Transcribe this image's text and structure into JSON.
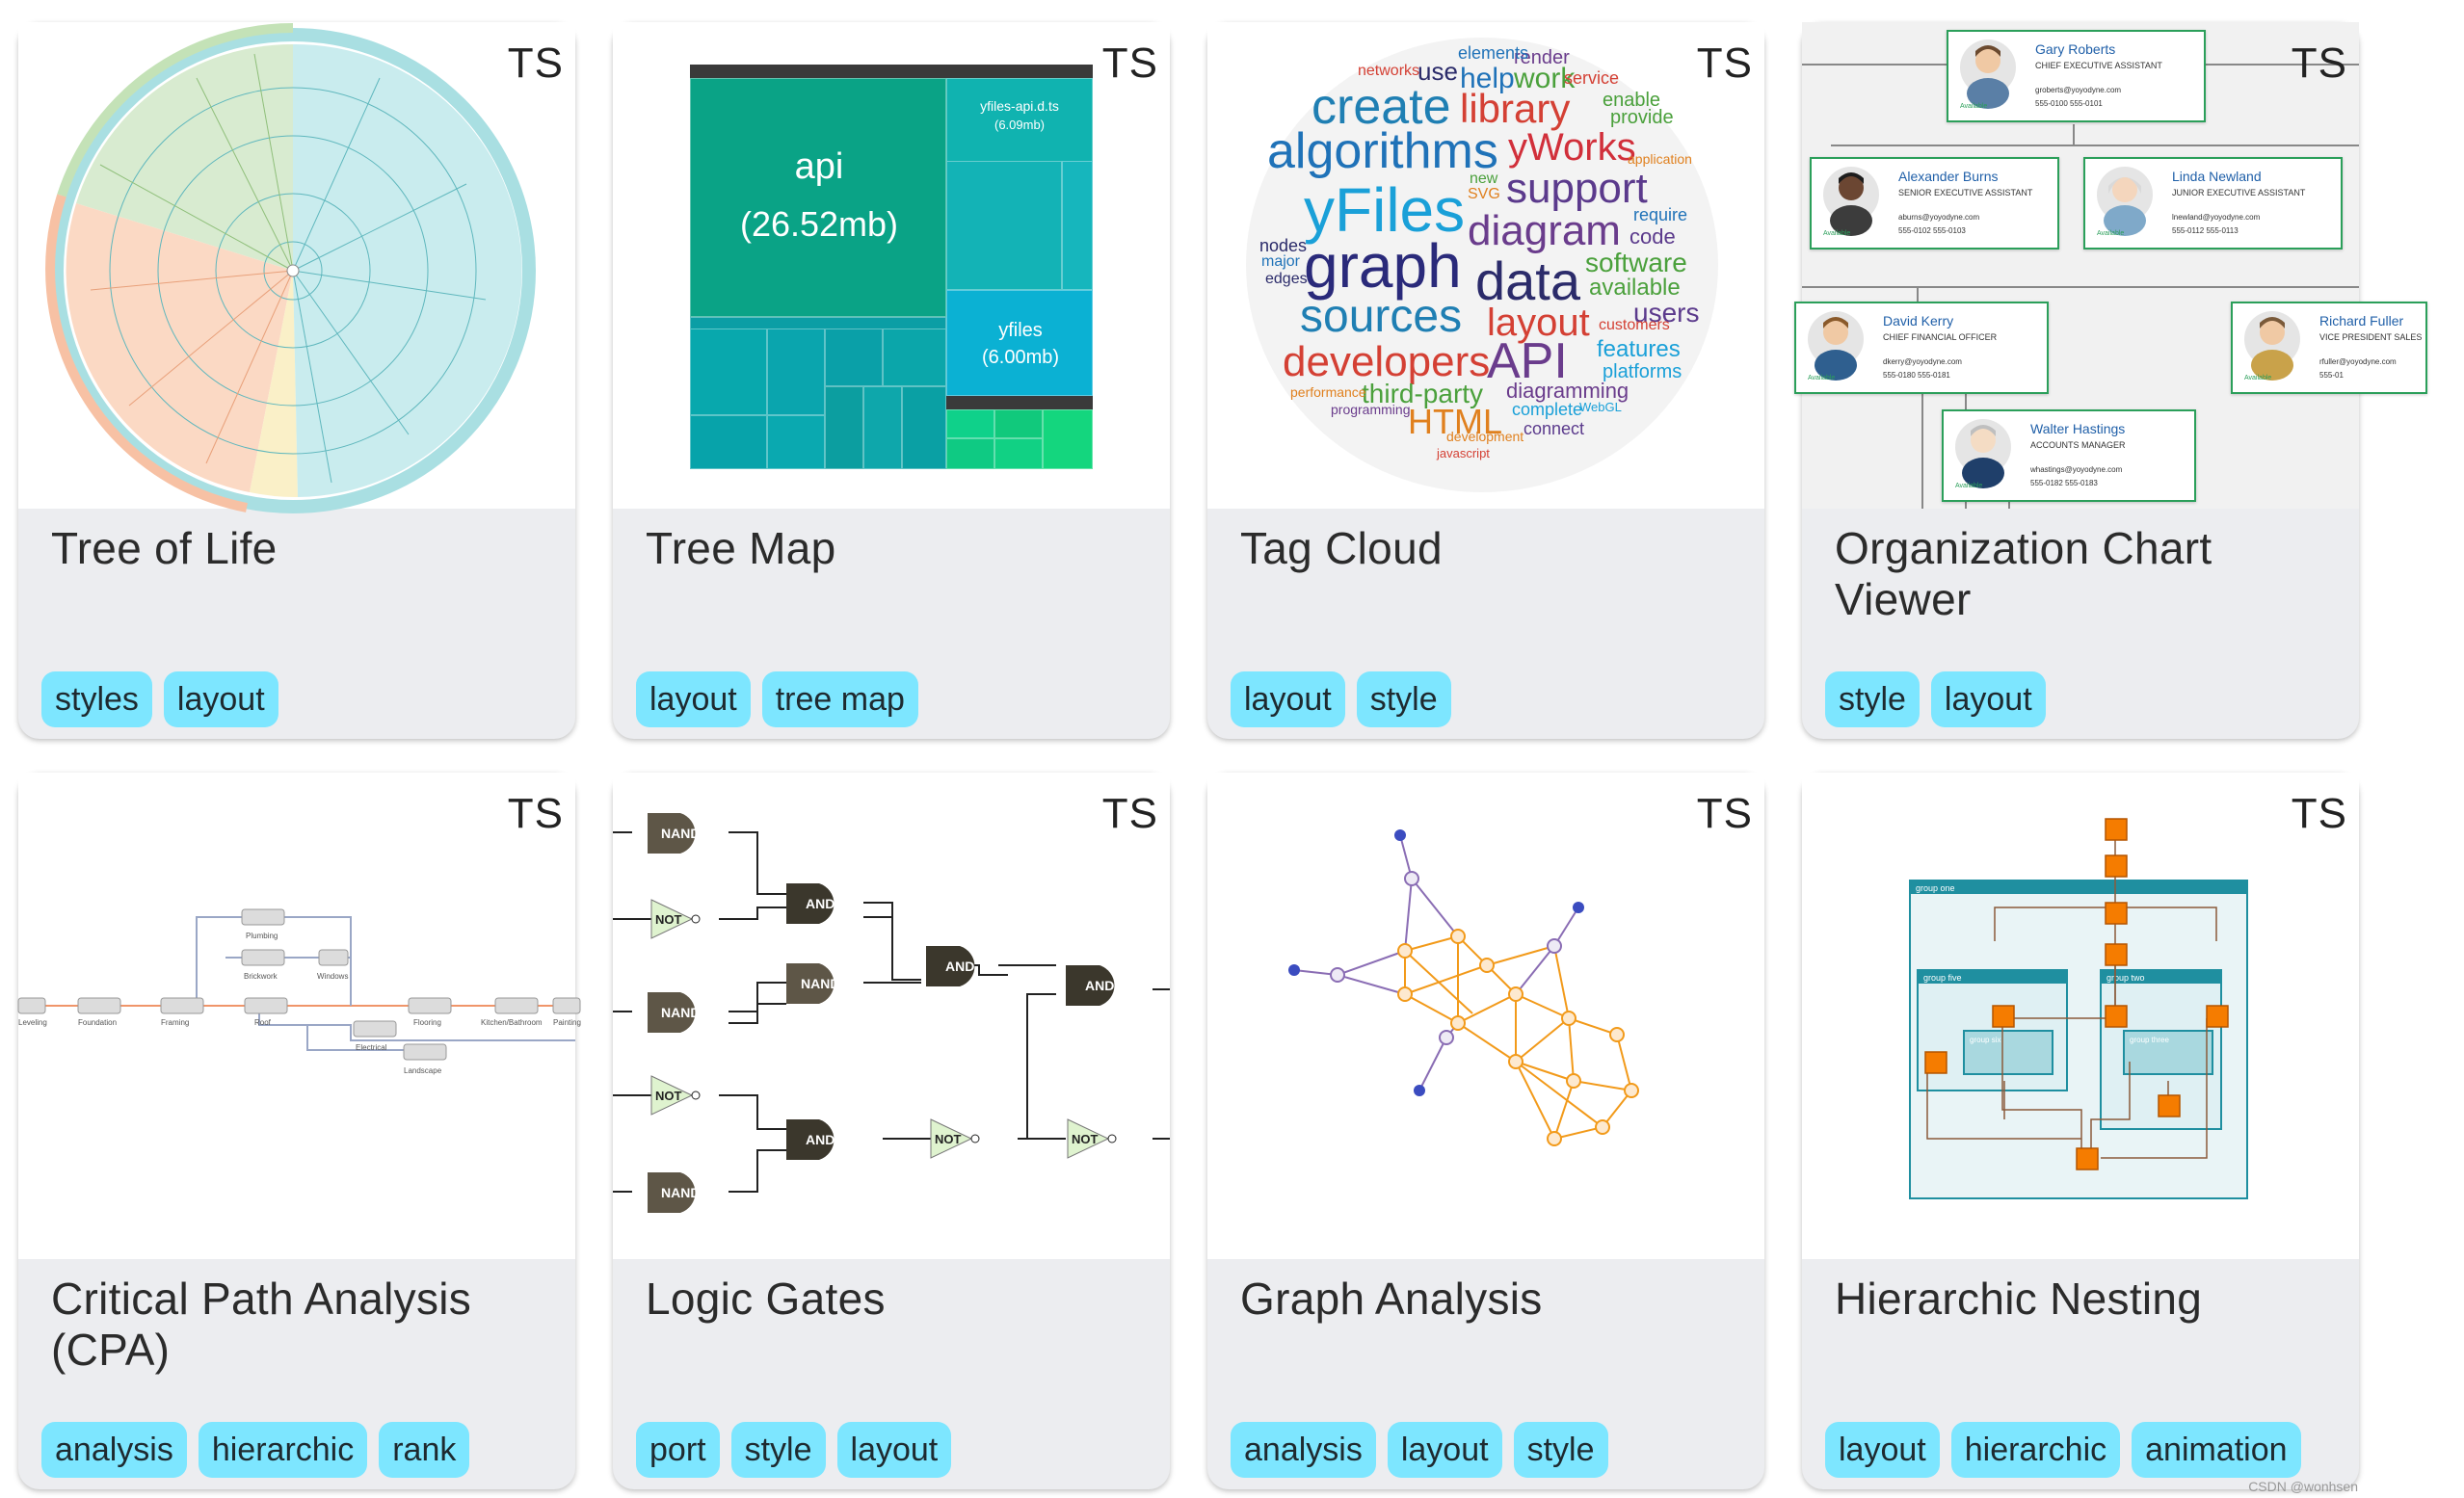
{
  "cards": [
    {
      "title": "Tree of Life",
      "badge": "TS",
      "tags": [
        "styles",
        "layout"
      ]
    },
    {
      "title": "Tree Map",
      "badge": "TS",
      "tags": [
        "layout",
        "tree map"
      ]
    },
    {
      "title": "Tag Cloud",
      "badge": "TS",
      "tags": [
        "layout",
        "style"
      ]
    },
    {
      "title": "Organization Chart Viewer",
      "badge": "TS",
      "tags": [
        "style",
        "layout"
      ]
    },
    {
      "title": "Critical Path Analysis (CPA)",
      "badge": "TS",
      "tags": [
        "analysis",
        "hierarchic",
        "rank"
      ]
    },
    {
      "title": "Logic Gates",
      "badge": "TS",
      "tags": [
        "port",
        "style",
        "layout"
      ]
    },
    {
      "title": "Graph Analysis",
      "badge": "TS",
      "tags": [
        "analysis",
        "layout",
        "style"
      ]
    },
    {
      "title": "Hierarchic Nesting",
      "badge": "TS",
      "tags": [
        "layout",
        "hierarchic",
        "animation"
      ]
    }
  ],
  "treemap": {
    "api_label": "api",
    "api_size": "(26.52mb)",
    "yfiles_label": "yfiles",
    "yfiles_size": "(6.00mb)",
    "dts_label": "yfiles-api.d.ts",
    "dts_size": "(6.09mb)"
  },
  "tagcloud": {
    "words": [
      "create",
      "library",
      "yWorks",
      "algorithms",
      "yFiles",
      "support",
      "diagram",
      "graph",
      "data",
      "software",
      "sources",
      "layout",
      "users",
      "developers",
      "API",
      "third-party",
      "HTML",
      "diagramming",
      "features",
      "platforms",
      "networks",
      "use",
      "help",
      "work",
      "render",
      "enable",
      "provide",
      "elements",
      "service",
      "nodes",
      "code",
      "require",
      "available",
      "customers",
      "complete",
      "connect",
      "development",
      "performance",
      "programming",
      "SVG",
      "new",
      "major",
      "edges",
      "WebGL",
      "javascript",
      "application"
    ]
  },
  "org": {
    "people": [
      {
        "name": "Gary Roberts",
        "position": "CHIEF EXECUTIVE ASSISTANT",
        "email": "groberts@yoyodyne.com",
        "phone": "555-0100   555-0101"
      },
      {
        "name": "Alexander Burns",
        "position": "SENIOR EXECUTIVE ASSISTANT",
        "email": "aburns@yoyodyne.com",
        "phone": "555-0102   555-0103"
      },
      {
        "name": "Linda Newland",
        "position": "JUNIOR EXECUTIVE ASSISTANT",
        "email": "lnewland@yoyodyne.com",
        "phone": "555-0112   555-0113"
      },
      {
        "name": "David Kerry",
        "position": "CHIEF FINANCIAL OFFICER",
        "email": "dkerry@yoyodyne.com",
        "phone": "555-0180   555-0181"
      },
      {
        "name": "Richard Fuller",
        "position": "VICE PRESIDENT SALES",
        "email": "rfuller@yoyodyne.com",
        "phone": "555-01"
      },
      {
        "name": "Walter Hastings",
        "position": "ACCOUNTS MANAGER",
        "email": "whastings@yoyodyne.com",
        "phone": "555-0182   555-0183"
      }
    ],
    "status": "Available"
  },
  "cpa": {
    "tasks": [
      "Foundation",
      "Framing",
      "Roof",
      "Flooring",
      "Kitchen/Bathroom",
      "Painting",
      "Plumbing",
      "Brickwork",
      "Windows",
      "Electrical",
      "Landscape",
      "Leveling"
    ]
  },
  "logic": {
    "nand": "NAND",
    "not": "NOT",
    "and": "AND"
  },
  "nesting": {
    "groups": [
      "group one",
      "group two",
      "group three",
      "group five",
      "group six"
    ]
  },
  "watermark": "CSDN @wonhsen"
}
